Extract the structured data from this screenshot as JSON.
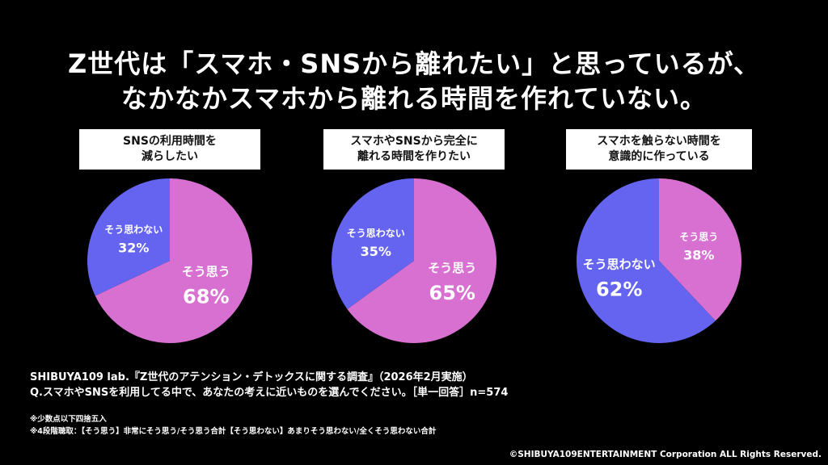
{
  "title": {
    "line1": "Z世代は「スマホ・SNSから離れたい」と思っているが、",
    "line2": "なかなかスマホから離れる時間を作れていない。"
  },
  "colors": {
    "agree": "#d870d2",
    "disagree": "#6464f0",
    "background": "#000000",
    "box": "#ffffff"
  },
  "chart_data": [
    {
      "type": "pie",
      "question": [
        "SNSの利用時間を",
        "減らしたい"
      ],
      "slices": [
        {
          "label": "そう思う",
          "value": 68,
          "display": "68%"
        },
        {
          "label": "そう思わない",
          "value": 32,
          "display": "32%"
        }
      ]
    },
    {
      "type": "pie",
      "question": [
        "スマホやSNSから完全に",
        "離れる時間を作りたい"
      ],
      "slices": [
        {
          "label": "そう思う",
          "value": 65,
          "display": "65%"
        },
        {
          "label": "そう思わない",
          "value": 35,
          "display": "35%"
        }
      ]
    },
    {
      "type": "pie",
      "question": [
        "スマホを触らない時間を",
        "意識的に作っている"
      ],
      "slices": [
        {
          "label": "そう思う",
          "value": 38,
          "display": "38%"
        },
        {
          "label": "そう思わない",
          "value": 62,
          "display": "62%"
        }
      ]
    }
  ],
  "footer": {
    "line1": "SHIBUYA109 lab.『Z世代のアテンション・デトックスに関する調査』（2026年2月実施）",
    "line2": "Q.スマホやSNSを利用してる中で、あなたの考えに近いものを選んでください。［単一回答］n=574"
  },
  "notes": {
    "note1": "※少数点以下四捨五入",
    "note2": "※4段階聴取：【そう思う】非常にそう思う/そう思う合計【そう思わない】あまりそう思わない/全くそう思わない合計"
  },
  "copyright": "©SHIBUYA109ENTERTAINMENT Corporation ALL Rights Reserved."
}
